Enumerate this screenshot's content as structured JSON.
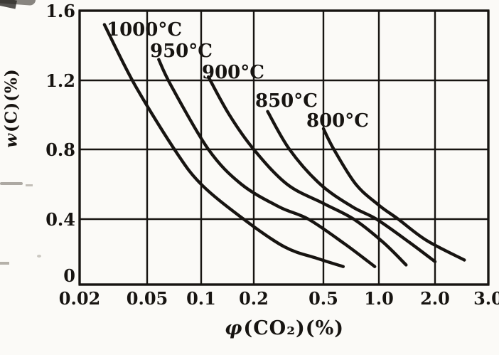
{
  "figure": {
    "background": "#fbfaf7",
    "ink": "#171411",
    "description": "scanned textbook line chart"
  },
  "axes": {
    "x_title_symbol": "φ",
    "x_title_rest": "(CO₂)(%)",
    "y_title_symbol": "w",
    "y_title_rest": "(C)(%)"
  },
  "chart_data": {
    "type": "line",
    "x_scale": "log",
    "xlabel": "φ(CO₂)(%)",
    "ylabel": "w(C)(%)",
    "xlim": [
      0.02,
      3.0
    ],
    "ylim": [
      0,
      1.6
    ],
    "grid": true,
    "legend_position": "labels-on-curves",
    "x_ticks": [
      0.02,
      0.05,
      0.1,
      0.2,
      0.5,
      1.0,
      2.0,
      3.0
    ],
    "x_tick_labels": [
      "0.02",
      "0.05",
      "0.1",
      "0.2",
      "0.5",
      "1.0",
      "2.0",
      "3.0"
    ],
    "y_ticks": [
      0,
      0.4,
      0.8,
      1.2,
      1.6
    ],
    "y_tick_labels": [
      "0",
      "0.4",
      "0.8",
      "1.2",
      "1.6"
    ],
    "series": [
      {
        "name": "1000°C",
        "points": [
          [
            0.028,
            1.52
          ],
          [
            0.042,
            1.18
          ],
          [
            0.071,
            0.8
          ],
          [
            0.1,
            0.6
          ],
          [
            0.175,
            0.4
          ],
          [
            0.3,
            0.23
          ],
          [
            0.46,
            0.16
          ],
          [
            0.64,
            0.11
          ]
        ]
      },
      {
        "name": "950°C",
        "points": [
          [
            0.058,
            1.32
          ],
          [
            0.068,
            1.17
          ],
          [
            0.11,
            0.8
          ],
          [
            0.17,
            0.6
          ],
          [
            0.28,
            0.47
          ],
          [
            0.41,
            0.4
          ],
          [
            0.65,
            0.25
          ],
          [
            0.95,
            0.11
          ]
        ]
      },
      {
        "name": "900°C",
        "points": [
          [
            0.11,
            1.22
          ],
          [
            0.145,
            1.0
          ],
          [
            0.2,
            0.8
          ],
          [
            0.31,
            0.6
          ],
          [
            0.5,
            0.49
          ],
          [
            0.73,
            0.4
          ],
          [
            1.05,
            0.26
          ],
          [
            1.4,
            0.12
          ]
        ]
      },
      {
        "name": "850°C",
        "points": [
          [
            0.24,
            1.02
          ],
          [
            0.32,
            0.8
          ],
          [
            0.48,
            0.6
          ],
          [
            0.72,
            0.47
          ],
          [
            0.97,
            0.4
          ],
          [
            1.45,
            0.26
          ],
          [
            2.0,
            0.14
          ]
        ]
      },
      {
        "name": "800°C",
        "points": [
          [
            0.5,
            0.92
          ],
          [
            0.57,
            0.8
          ],
          [
            0.75,
            0.6
          ],
          [
            1.0,
            0.48
          ],
          [
            1.27,
            0.4
          ],
          [
            1.8,
            0.27
          ],
          [
            2.5,
            0.15
          ]
        ]
      }
    ]
  }
}
